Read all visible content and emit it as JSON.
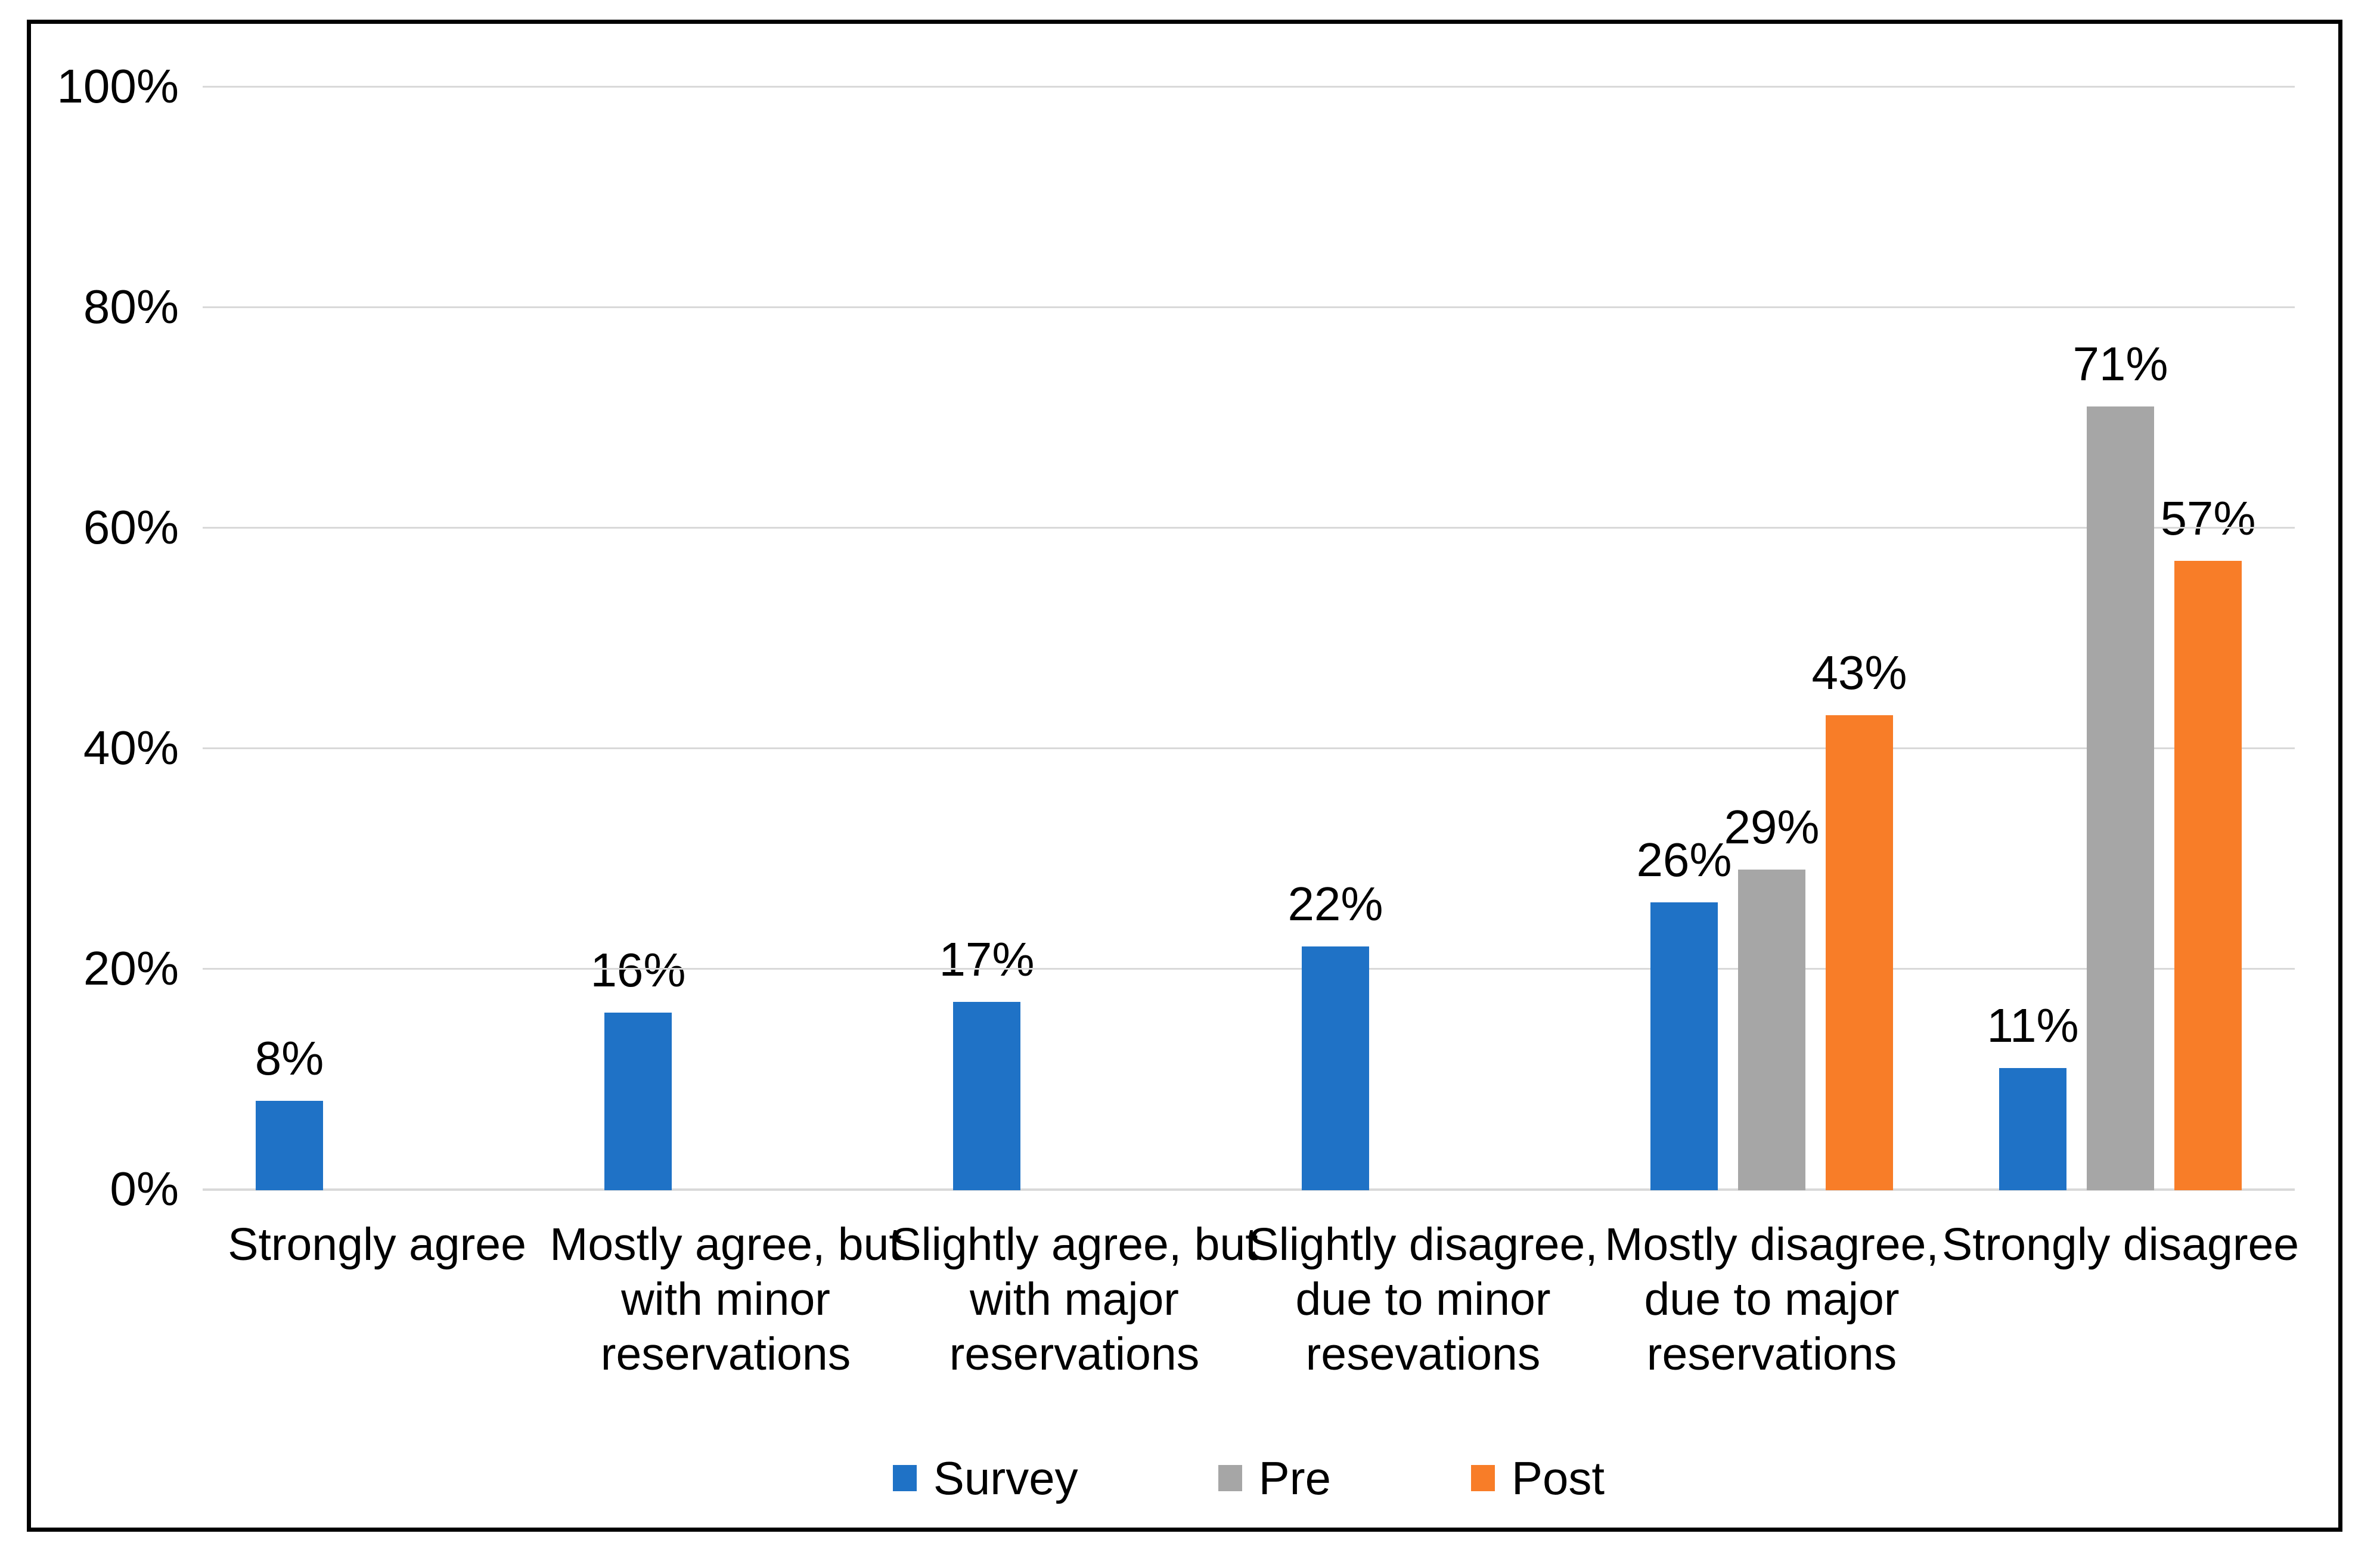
{
  "colors": {
    "background": "#FFFFFF",
    "border": "#000000",
    "gridline": "#D9D9D9",
    "text": "#000000",
    "survey_blue": "#1F72C6",
    "pre_gray": "#A6A6A6",
    "post_orange": "#F87D28"
  },
  "chart_data": {
    "type": "bar",
    "title": "",
    "xlabel": "",
    "ylabel": "",
    "ylim": [
      0,
      100
    ],
    "grid": true,
    "legend_position": "bottom",
    "y_ticks": [
      "0%",
      "20%",
      "40%",
      "60%",
      "80%",
      "100%"
    ],
    "categories": [
      "Strongly agree",
      "Mostly agree, but with minor reservations",
      "Slightly agree, but with major reservations",
      "Slightly disagree, due to minor resevations",
      "Mostly disagree, due to major reservations",
      "Strongly disagree"
    ],
    "category_lines": [
      [
        "Strongly agree"
      ],
      [
        "Mostly agree, but",
        "with minor",
        "reservations"
      ],
      [
        "Slightly agree, but",
        "with major",
        "reservations"
      ],
      [
        "Slightly disagree,",
        "due to minor",
        "resevations"
      ],
      [
        "Mostly disagree,",
        "due to major",
        "reservations"
      ],
      [
        "Strongly disagree"
      ]
    ],
    "series": [
      {
        "name": "Survey",
        "color": "#1F72C6",
        "values": [
          8,
          16,
          17,
          22,
          26,
          11
        ]
      },
      {
        "name": "Pre",
        "color": "#A6A6A6",
        "values": [
          null,
          null,
          null,
          null,
          29,
          71
        ]
      },
      {
        "name": "Post",
        "color": "#F87D28",
        "values": [
          null,
          null,
          null,
          null,
          43,
          57
        ]
      }
    ],
    "data_labels": [
      [
        "8%",
        "16%",
        "17%",
        "22%",
        "26%",
        "11%"
      ],
      [
        null,
        null,
        null,
        null,
        "29%",
        "71%"
      ],
      [
        null,
        null,
        null,
        null,
        "43%",
        "57%"
      ]
    ]
  }
}
